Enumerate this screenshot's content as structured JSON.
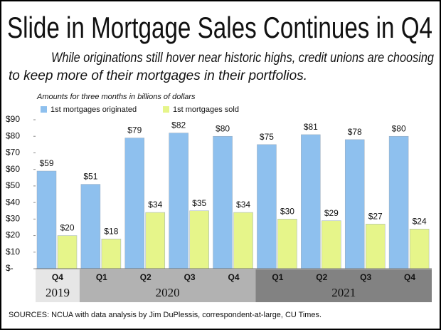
{
  "chart_data": {
    "type": "bar",
    "title": "Slide in Mortgage Sales Continues in Q4",
    "subtitle": [
      "While originations still hover near historic highs, credit unions are choosing",
      "to keep more of their mortgages in their portfolios."
    ],
    "axis_note": "Amounts for three months in billions of dollars",
    "source": "SOURCES: NCUA with data analysis by Jim DuPlessis, correspondent-at-large, CU Times.",
    "groups": [
      {
        "name": "2019",
        "color": "#e6e6e6",
        "categories": [
          "Q4"
        ]
      },
      {
        "name": "2020",
        "color": "#b2b2b2",
        "categories": [
          "Q1",
          "Q2",
          "Q3",
          "Q4"
        ]
      },
      {
        "name": "2021",
        "color": "#828282",
        "categories": [
          "Q1",
          "Q2",
          "Q3",
          "Q4"
        ]
      }
    ],
    "series": [
      {
        "name": "1st mortgages originated",
        "color": "#8ec0ee",
        "values": [
          59,
          51,
          79,
          82,
          80,
          75,
          81,
          78,
          80
        ],
        "value_labels": [
          "$59",
          "$51",
          "$79",
          "$82",
          "$80",
          "$75",
          "$81",
          "$78",
          "$80"
        ]
      },
      {
        "name": "1st mortgages sold",
        "color": "#e6f58a",
        "values": [
          20,
          18,
          34,
          35,
          34,
          30,
          29,
          27,
          24
        ],
        "value_labels": [
          "$20",
          "$18",
          "$34",
          "$35",
          "$34",
          "$30",
          "$29",
          "$27",
          "$24"
        ]
      }
    ],
    "ylim": [
      0,
      90
    ],
    "yticks": [
      {
        "value": 0,
        "label": "$-"
      },
      {
        "value": 10,
        "label": "$10"
      },
      {
        "value": 20,
        "label": "$20"
      },
      {
        "value": 30,
        "label": "$30"
      },
      {
        "value": 40,
        "label": "$40"
      },
      {
        "value": 50,
        "label": "$50"
      },
      {
        "value": 60,
        "label": "$60"
      },
      {
        "value": 70,
        "label": "$70"
      },
      {
        "value": 80,
        "label": "$80"
      },
      {
        "value": 90,
        "label": "$90"
      }
    ],
    "grid": false
  }
}
